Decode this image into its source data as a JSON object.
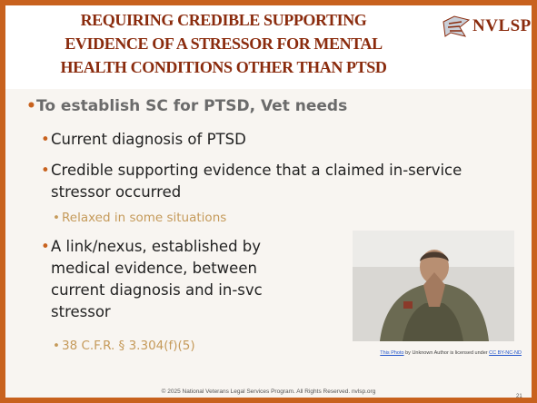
{
  "header": {
    "title": [
      "REQUIRING CREDIBLE SUPPORTING",
      "EVIDENCE OF A STRESSOR FOR MENTAL",
      "HEALTH CONDITIONS OTHER THAN PTSD"
    ],
    "logo": "NVLSP"
  },
  "bullets": [
    {
      "level": 1,
      "text": "To establish SC for PTSD, Vet needs"
    },
    {
      "level": 2,
      "text": "Current diagnosis of PTSD"
    },
    {
      "level": 2,
      "text": "Credible supporting evidence that a claimed in-service stressor occurred"
    },
    {
      "level": 3,
      "text": "Relaxed in some situations"
    },
    {
      "level": 2,
      "text": "A link/nexus, established by medical evidence, between current diagnosis and in-svc stressor"
    },
    {
      "level": 3,
      "text": "38 C.F.R. § 3.304(f)(5)"
    }
  ],
  "photo_caption": {
    "link": "This Photo",
    "text": " by Unknown Author is licensed under ",
    "license": "CC BY-NC-ND"
  },
  "footer": "© 2025 National Veterans Legal Services Program. All Rights Reserved. nvlsp.org",
  "page_number": "21"
}
